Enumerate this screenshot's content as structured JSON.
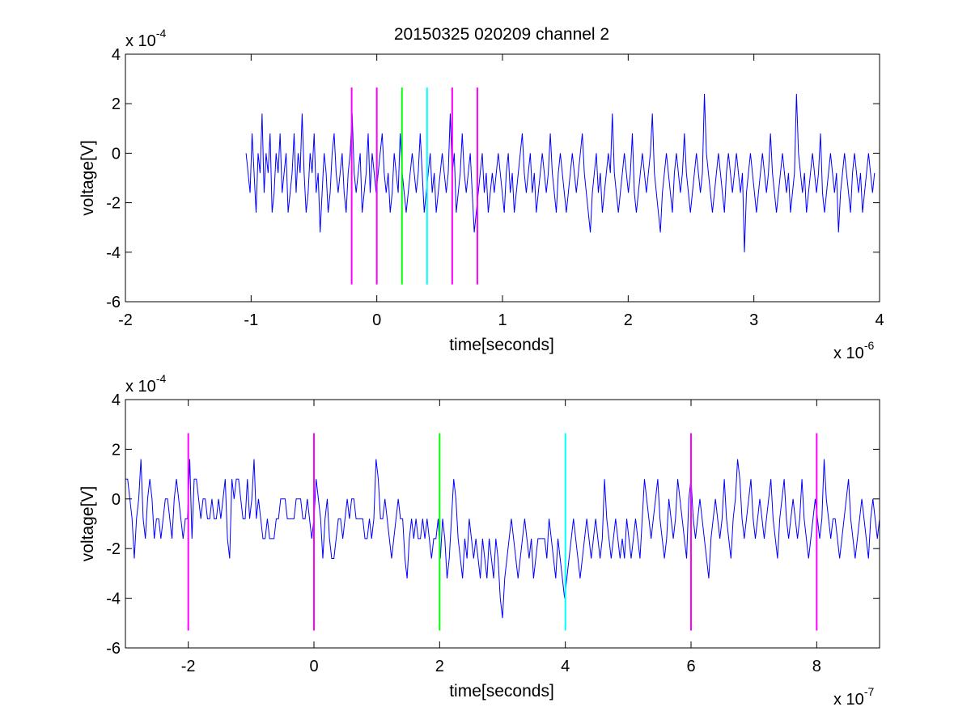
{
  "title": "20150325 020209 channel 2",
  "colors": {
    "signal": "#0000ff",
    "marker_magenta": "#ff00ff",
    "marker_green": "#00ff00",
    "marker_cyan": "#00ffff",
    "axes": "#000000",
    "background": "#ffffff"
  },
  "chart_data": [
    {
      "type": "line",
      "title": "20150325 020209 channel 2",
      "xlabel": "time[seconds]",
      "ylabel": "voltage[V]",
      "x_exponent": {
        "base": "x 10",
        "power": "-6"
      },
      "y_exponent": {
        "base": "x 10",
        "power": "-4"
      },
      "xlim": [
        -2,
        4
      ],
      "ylim": [
        -6,
        4
      ],
      "xticks": [
        -2,
        -1,
        0,
        1,
        2,
        3,
        4
      ],
      "xtick_labels": [
        "-2",
        "-1",
        "0",
        "1",
        "2",
        "3",
        "4"
      ],
      "yticks": [
        -6,
        -4,
        -2,
        0,
        2,
        4
      ],
      "ytick_labels": [
        "-6",
        "-4",
        "-2",
        "0",
        "2",
        "4"
      ],
      "grid": false,
      "legend": "none",
      "series": [
        {
          "color": "#0000ff",
          "x_start": -1.04,
          "x_end": 3.96,
          "values": [
            0,
            -0.8,
            -1.6,
            0.8,
            -0.8,
            -2.4,
            0,
            -0.8,
            1.6,
            -1.6,
            0,
            -0.8,
            0.8,
            -2.4,
            -1.6,
            0,
            -0.8,
            0.8,
            -1.6,
            -0.8,
            0,
            -2.4,
            -1.6,
            -0.8,
            0.8,
            -1.6,
            0,
            -0.8,
            1.6,
            -0.8,
            -2.4,
            -1.6,
            0,
            -0.8,
            0.8,
            -1.6,
            -0.8,
            -3.2,
            -1.6,
            0,
            -0.8,
            -2.4,
            -1.6,
            0,
            0.8,
            -0.8,
            -1.6,
            -0.8,
            0,
            -1.6,
            -2.4,
            -0.8,
            0,
            1.6,
            -0.8,
            -1.6,
            -0.8,
            0,
            -2.4,
            -1.6,
            -0.8,
            0.8,
            -1.6,
            0,
            -0.8,
            -1.6,
            -0.8,
            0,
            0.8,
            -0.8,
            -1.6,
            -0.8,
            -2.4,
            -1.6,
            0,
            -0.8,
            -1.6,
            0.8,
            -0.8,
            -1.6,
            -2.4,
            -1.6,
            -0.8,
            0,
            -0.8,
            -1.6,
            -0.8,
            0.8,
            -0.8,
            -2.4,
            -1.6,
            -0.8,
            0,
            -1.6,
            -0.8,
            -2.4,
            -1.6,
            -0.8,
            0,
            -0.8,
            -1.6,
            -0.8,
            1.6,
            -0.8,
            0,
            -2.4,
            -1.6,
            -0.8,
            0.8,
            -0.8,
            -1.6,
            -0.8,
            0,
            -1.6,
            -3.2,
            -2.4,
            -1.6,
            -0.8,
            0,
            -1.6,
            -0.8,
            -2.4,
            -1.6,
            -0.8,
            -1.6,
            -0.8,
            0,
            -0.8,
            -1.6,
            -2.4,
            -0.8,
            0,
            -1.6,
            -0.8,
            -2.4,
            -1.6,
            -0.8,
            0,
            0.8,
            -0.8,
            -1.6,
            -0.8,
            0,
            -1.6,
            -0.8,
            -2.4,
            -1.6,
            -0.8,
            0,
            -0.8,
            -1.6,
            -0.8,
            0.8,
            -0.8,
            -1.6,
            -2.4,
            -0.8,
            0,
            -0.8,
            -1.6,
            -2.4,
            -1.6,
            -0.8,
            0,
            -0.8,
            -1.6,
            -0.8,
            0,
            0.8,
            -0.8,
            -1.6,
            -2.4,
            -3.2,
            -1.6,
            -0.8,
            0,
            -1.6,
            -0.8,
            -2.4,
            -1.6,
            -0.8,
            0,
            -0.8,
            1.6,
            -0.8,
            -1.6,
            -2.4,
            -1.6,
            -0.8,
            0,
            -0.8,
            -1.6,
            -0.8,
            0.8,
            -1.6,
            -2.4,
            -1.6,
            -0.8,
            0,
            -0.8,
            -1.6,
            -0.8,
            0,
            1.6,
            -0.8,
            -1.6,
            -2.4,
            -3.2,
            -1.6,
            -0.8,
            0,
            -0.8,
            -1.6,
            -2.4,
            -0.8,
            0,
            -0.8,
            -1.6,
            -0.8,
            0.8,
            -0.8,
            -1.6,
            -2.4,
            -1.6,
            -0.8,
            0,
            -0.8,
            -1.6,
            -0.8,
            2.4,
            0,
            -0.8,
            -1.6,
            -2.4,
            -1.6,
            -0.8,
            0,
            -0.8,
            -1.6,
            -2.4,
            -0.8,
            0,
            -0.8,
            -1.6,
            -0.8,
            0,
            -0.8,
            -1.6,
            -0.8,
            -4,
            -1.6,
            -0.8,
            0,
            -0.8,
            -1.6,
            -2.4,
            -1.6,
            -0.8,
            0,
            -0.8,
            -1.6,
            -0.8,
            0.8,
            -0.8,
            -1.6,
            -2.4,
            -1.6,
            -0.8,
            0,
            -0.8,
            -1.6,
            -0.8,
            -2.4,
            -1.6,
            -0.8,
            2.4,
            0,
            -0.8,
            -1.6,
            -0.8,
            -2.4,
            -1.6,
            -0.8,
            0,
            -0.8,
            -1.6,
            -0.8,
            0.8,
            -1.6,
            -2.4,
            -1.6,
            -0.8,
            0,
            -0.8,
            -1.6,
            -0.8,
            -3.2,
            -1.6,
            -0.8,
            0,
            -0.8,
            -1.6,
            -2.4,
            -0.8,
            0,
            -0.8,
            -1.6,
            -0.8,
            -2.4,
            -1.6,
            -0.8,
            0,
            -0.8,
            -1.6,
            -0.8
          ]
        }
      ],
      "markers": [
        {
          "x": -0.2,
          "color": "#ff00ff",
          "y_range": [
            -5.3,
            2.65
          ]
        },
        {
          "x": 0.0,
          "color": "#ff00ff",
          "y_range": [
            -5.3,
            2.65
          ]
        },
        {
          "x": 0.2,
          "color": "#00ff00",
          "y_range": [
            -5.3,
            2.65
          ]
        },
        {
          "x": 0.4,
          "color": "#00ffff",
          "y_range": [
            -5.3,
            2.65
          ]
        },
        {
          "x": 0.6,
          "color": "#ff00ff",
          "y_range": [
            -5.3,
            2.65
          ]
        },
        {
          "x": 0.8,
          "color": "#ff00ff",
          "y_range": [
            -5.3,
            2.65
          ]
        }
      ]
    },
    {
      "type": "line",
      "title": "",
      "xlabel": "time[seconds]",
      "ylabel": "voltage[V]",
      "x_exponent": {
        "base": "x 10",
        "power": "-7"
      },
      "y_exponent": {
        "base": "x 10",
        "power": "-4"
      },
      "xlim": [
        -3,
        9
      ],
      "ylim": [
        -6,
        4
      ],
      "xticks": [
        -2,
        0,
        2,
        4,
        6,
        8
      ],
      "xtick_labels": [
        "-2",
        "0",
        "2",
        "4",
        "6",
        "8"
      ],
      "yticks": [
        -6,
        -4,
        -2,
        0,
        2,
        4
      ],
      "ytick_labels": [
        "-6",
        "-4",
        "-2",
        "0",
        "2",
        "4"
      ],
      "grid": false,
      "legend": "none",
      "series": [
        {
          "color": "#0000ff",
          "x_start": -3,
          "x_end": 9,
          "values": [
            0.8,
            0.8,
            0,
            -0.8,
            -2.4,
            -0.8,
            0,
            1.6,
            -0.8,
            -1.6,
            0,
            0.8,
            0,
            -1.6,
            -0.8,
            -0.8,
            -1.6,
            -0.8,
            0,
            0,
            -0.8,
            -1.6,
            0,
            0.8,
            0,
            -0.8,
            -1.6,
            -0.8,
            -0.8,
            1.6,
            -1.6,
            0.8,
            0.8,
            0,
            -0.8,
            0,
            0,
            -0.8,
            -0.8,
            0,
            -0.8,
            -0.8,
            0,
            -0.8,
            0,
            0.8,
            -1.6,
            -2.4,
            0.8,
            0,
            0.8,
            0.8,
            0,
            -0.8,
            -0.8,
            0.8,
            -0.8,
            0,
            1.6,
            -0.8,
            0,
            -0.8,
            -1.6,
            -1.6,
            -0.8,
            -1.6,
            -1.6,
            -1.6,
            -0.8,
            -0.8,
            0,
            0,
            0,
            -0.8,
            -0.8,
            -0.8,
            -0.8,
            0,
            0,
            0,
            -0.8,
            -0.8,
            0,
            -0.8,
            -1.6,
            -0.8,
            0.8,
            0,
            -0.8,
            -2.4,
            -0.8,
            0,
            -1.6,
            -2.4,
            -2.4,
            -1.6,
            -0.8,
            -0.8,
            -1.6,
            -0.8,
            0,
            -0.8,
            0,
            0,
            -0.8,
            -0.8,
            -0.8,
            -0.8,
            -1.6,
            -1.6,
            -0.8,
            -1.6,
            -0.8,
            1.6,
            0.8,
            -0.8,
            -0.8,
            0,
            -0.8,
            -1.6,
            -2.4,
            -1.6,
            -0.8,
            0,
            -0.8,
            -0.8,
            -2.4,
            -3.2,
            -1.6,
            -0.8,
            -1.6,
            -0.8,
            -1.6,
            -1.6,
            -0.8,
            -1.6,
            -0.8,
            -1.6,
            -2.4,
            -1.6,
            -1.6,
            -0.8,
            -2.4,
            -0.8,
            -1.6,
            -3.2,
            -2.4,
            -0.8,
            0.8,
            0,
            -1.6,
            -2.4,
            -3.2,
            -1.6,
            -2.4,
            -0.8,
            -1.6,
            -2.4,
            -1.6,
            -2.4,
            -3.2,
            -1.6,
            -2.4,
            -3.2,
            -1.6,
            -2.4,
            -3.2,
            -1.6,
            -2.4,
            -4,
            -4.8,
            -3.2,
            -2.4,
            -1.6,
            -0.8,
            -1.6,
            -2.4,
            -3.2,
            -2.4,
            -1.6,
            -0.8,
            -1.6,
            -2.4,
            -1.6,
            -3.2,
            -2.4,
            -1.6,
            -1.6,
            -1.6,
            -1.6,
            -2.4,
            -0.8,
            -1.6,
            -2.4,
            -3.2,
            -1.6,
            -2.4,
            -3.2,
            -4,
            -3.2,
            -2.4,
            -1.6,
            -0.8,
            -1.6,
            -2.4,
            -3.2,
            -2.4,
            -1.6,
            -0.8,
            -1.6,
            -2.4,
            -1.6,
            -0.8,
            -1.6,
            -2.4,
            -1.6,
            0.8,
            -0.8,
            -1.6,
            -2.4,
            -1.6,
            -0.8,
            -1.6,
            -2.4,
            -1.6,
            -2.4,
            -0.8,
            -1.6,
            -2.4,
            -1.6,
            -0.8,
            -1.6,
            -2.4,
            -0.8,
            0.8,
            0,
            -0.8,
            -1.6,
            -0.8,
            0,
            0.8,
            -0.8,
            -1.6,
            -2.4,
            -1.6,
            0,
            -0.8,
            -1.6,
            -0.8,
            0.8,
            0,
            -0.8,
            -1.6,
            -2.4,
            0,
            0.8,
            -0.8,
            -1.6,
            -0.8,
            0,
            -0.8,
            -1.6,
            -2.4,
            -3.2,
            -1.6,
            -0.8,
            0,
            -0.8,
            -1.6,
            -0.8,
            0.8,
            -0.8,
            -1.6,
            -2.4,
            -0.8,
            0,
            1.6,
            0.8,
            -0.8,
            -1.6,
            -0.8,
            0,
            0.8,
            -0.8,
            -1.6,
            -0.8,
            0,
            -0.8,
            -1.6,
            -0.8,
            0,
            0.8,
            -0.8,
            -1.6,
            -2.4,
            -0.8,
            0,
            0.8,
            -0.8,
            -1.6,
            -0.8,
            0,
            -0.8,
            -1.6,
            -0.8,
            0.8,
            -0.8,
            -1.6,
            -2.4,
            -1.6,
            -0.8,
            0,
            -0.8,
            -1.6,
            -0.8,
            1.6,
            0,
            -0.8,
            -1.6,
            -0.8,
            -0.8,
            -1.6,
            -2.4,
            -1.6,
            -0.8,
            0,
            0.8,
            -0.8,
            -1.6,
            -2.4,
            -1.6,
            -0.8,
            0,
            -0.8,
            -1.6,
            -2.4,
            -0.8,
            0,
            -0.8,
            -1.6,
            -0.8
          ]
        }
      ],
      "markers": [
        {
          "x": -2,
          "color": "#ff00ff",
          "y_range": [
            -5.3,
            2.65
          ]
        },
        {
          "x": 0,
          "color": "#ff00ff",
          "y_range": [
            -5.3,
            2.65
          ]
        },
        {
          "x": 2,
          "color": "#00ff00",
          "y_range": [
            -5.3,
            2.65
          ]
        },
        {
          "x": 4,
          "color": "#00ffff",
          "y_range": [
            -5.3,
            2.65
          ]
        },
        {
          "x": 6,
          "color": "#ff00ff",
          "y_range": [
            -5.3,
            2.65
          ]
        },
        {
          "x": 8,
          "color": "#ff00ff",
          "y_range": [
            -5.3,
            2.65
          ]
        }
      ]
    }
  ]
}
